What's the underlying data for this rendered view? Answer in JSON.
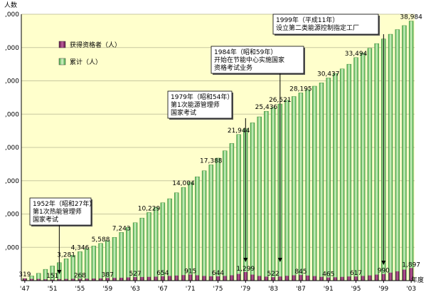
{
  "chart_data": {
    "type": "bar",
    "ylabel": "人数",
    "xlabel": "年度",
    "ylim": [
      0,
      40000
    ],
    "y_ticks": [
      0,
      5000,
      10000,
      15000,
      20000,
      25000,
      30000,
      35000,
      40000
    ],
    "y_tick_labels": [
      "",
      ",000",
      ",000",
      ",000",
      ",000",
      ",000",
      ",000",
      ",000",
      ",000"
    ],
    "x_tick_labels": [
      "'47",
      "'51",
      "'55",
      "'59",
      "'63",
      "'67",
      "'71",
      "'75",
      "'79",
      "'83",
      "'87",
      "'91",
      "'95",
      "'99",
      "'03"
    ],
    "years": [
      1947,
      1948,
      1949,
      1950,
      1951,
      1952,
      1953,
      1954,
      1955,
      1956,
      1957,
      1958,
      1959,
      1960,
      1961,
      1962,
      1963,
      1964,
      1965,
      1966,
      1967,
      1968,
      1969,
      1970,
      1971,
      1972,
      1973,
      1974,
      1975,
      1976,
      1977,
      1978,
      1979,
      1980,
      1981,
      1982,
      1983,
      1984,
      1985,
      1986,
      1987,
      1988,
      1989,
      1990,
      1991,
      1992,
      1993,
      1994,
      1995,
      1996,
      1997,
      1998,
      1999,
      2000,
      2001,
      2002,
      2003
    ],
    "series": [
      {
        "name": "获得资格者（人）",
        "color": "#7a1f5c",
        "values": [
          319,
          250,
          250,
          200,
          151,
          230,
          250,
          280,
          268,
          290,
          310,
          330,
          387,
          410,
          430,
          480,
          527,
          540,
          560,
          590,
          654,
          700,
          760,
          830,
          915,
          800,
          700,
          650,
          644,
          700,
          800,
          1000,
          1299,
          900,
          700,
          600,
          522,
          620,
          720,
          800,
          845,
          760,
          680,
          560,
          465,
          500,
          560,
          620,
          617,
          700,
          780,
          900,
          990,
          1200,
          1400,
          1650,
          1897
        ]
      },
      {
        "name": "累计（人）",
        "color": "#3faa3f",
        "values": [
          319,
          700,
          1100,
          1700,
          2200,
          2700,
          3281,
          3800,
          4346,
          4800,
          5200,
          5588,
          6000,
          6500,
          7243,
          8000,
          8700,
          9400,
          10229,
          11000,
          11700,
          12300,
          13200,
          14004,
          14800,
          15600,
          16500,
          17388,
          18400,
          19500,
          20600,
          21944,
          22800,
          23700,
          24600,
          25436,
          26000,
          26521,
          27100,
          27650,
          28195,
          28700,
          29200,
          29700,
          30437,
          31100,
          31800,
          32500,
          33494,
          34200,
          34900,
          35600,
          36300,
          37000,
          37700,
          38300,
          38984
        ]
      }
    ],
    "data_labels": {
      "cumulative": [
        {
          "x": 1947,
          "text": "319"
        },
        {
          "x": 1953,
          "text": "3,281"
        },
        {
          "x": 1955,
          "text": "4,346"
        },
        {
          "x": 1958,
          "text": "5,588"
        },
        {
          "x": 1961,
          "text": "7,243"
        },
        {
          "x": 1965,
          "text": "10,229"
        },
        {
          "x": 1970,
          "text": "14,004"
        },
        {
          "x": 1974,
          "text": "17,388"
        },
        {
          "x": 1978,
          "text": "21,944"
        },
        {
          "x": 1982,
          "text": "25,436"
        },
        {
          "x": 1984,
          "text": "26,521"
        },
        {
          "x": 1987,
          "text": "28,195"
        },
        {
          "x": 1991,
          "text": "30,437"
        },
        {
          "x": 1995,
          "text": "33,494"
        },
        {
          "x": 2003,
          "text": "38,984"
        }
      ],
      "annual": [
        {
          "x": 1951,
          "text": "151"
        },
        {
          "x": 1955,
          "text": "268"
        },
        {
          "x": 1959,
          "text": "387"
        },
        {
          "x": 1963,
          "text": "527"
        },
        {
          "x": 1967,
          "text": "654"
        },
        {
          "x": 1971,
          "text": "915"
        },
        {
          "x": 1975,
          "text": "644"
        },
        {
          "x": 1979,
          "text": "1,299"
        },
        {
          "x": 1983,
          "text": "522"
        },
        {
          "x": 1987,
          "text": "845"
        },
        {
          "x": 1991,
          "text": "465"
        },
        {
          "x": 1995,
          "text": "617"
        },
        {
          "x": 1999,
          "text": "990"
        },
        {
          "x": 2003,
          "text": "1,897"
        }
      ]
    },
    "annotations": [
      {
        "lines": [
          "1952年（昭和27年）",
          "第1次热能管理师",
          "国家考试"
        ],
        "arrow_x": 1952
      },
      {
        "lines": [
          "1979年（昭和54年）",
          "第1次能源管理师",
          "国家考试"
        ],
        "arrow_x": 1979
      },
      {
        "lines": [
          "1984年（昭和59年）",
          "开始在节能中心实施国家",
          "资格考试业务"
        ],
        "arrow_x": 1984
      },
      {
        "lines": [
          "1999年（平成11年）",
          "设立第二类能源控制指定工厂"
        ],
        "arrow_x": 1999
      }
    ],
    "legend": "top-left",
    "grid": true,
    "colors": {
      "plot_bg": "#ffffcc",
      "grid": "#c8c8a0",
      "annual_bar": "#7a1f5c",
      "cumulative_bar": "#3faa3f",
      "cumulative_bar_light": "#d8f2c8"
    }
  }
}
